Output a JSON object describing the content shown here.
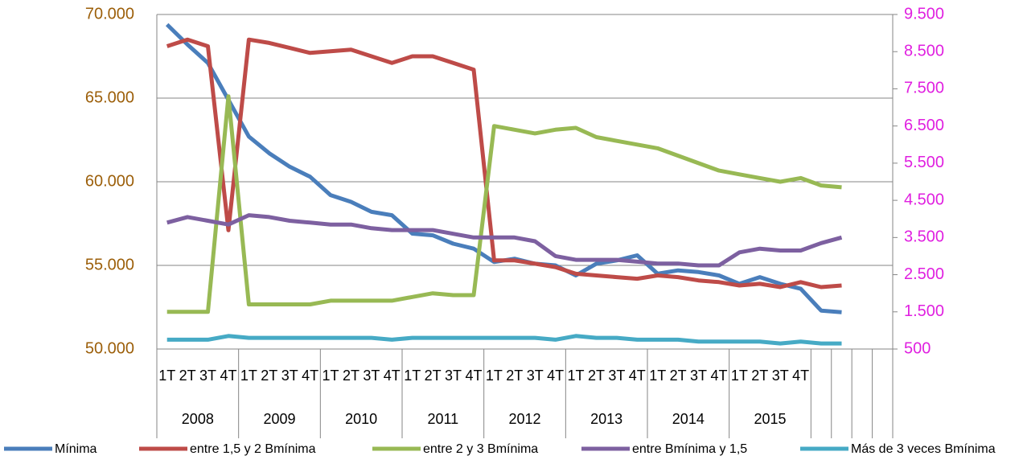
{
  "chart_data": {
    "type": "line",
    "categories": [
      "1T",
      "2T",
      "3T",
      "4T",
      "1T",
      "2T",
      "3T",
      "4T",
      "1T",
      "2T",
      "3T",
      "4T",
      "1T",
      "2T",
      "3T",
      "4T",
      "1T",
      "2T",
      "3T",
      "4T",
      "1T",
      "2T",
      "3T",
      "4T",
      "1T",
      "2T",
      "3T",
      "4T",
      "1T",
      "2T",
      "3T",
      "4T",
      null,
      null,
      null,
      null
    ],
    "groups": [
      "2008",
      "2009",
      "2010",
      "2011",
      "2012",
      "2013",
      "2014",
      "2015"
    ],
    "series": [
      {
        "name": "Mínima",
        "color": "#4a7ebb",
        "values": [
          69400,
          68200,
          67100,
          64900,
          62700,
          61700,
          60900,
          60300,
          59200,
          58800,
          58200,
          58000,
          56900,
          56800,
          56300,
          56000,
          55200,
          55400,
          55100,
          55000,
          54400,
          55100,
          55300,
          55600,
          54500,
          54700,
          54600,
          54400,
          53900,
          54300,
          53900,
          53600,
          52300,
          52200,
          null,
          null
        ]
      },
      {
        "name": "entre 1,5 y 2 Bmínima",
        "color": "#be4b48",
        "values": [
          68100,
          68500,
          68100,
          57100,
          68500,
          68300,
          68000,
          67700,
          67800,
          67900,
          67500,
          67100,
          67500,
          67500,
          67100,
          66700,
          55300,
          55300,
          55100,
          54900,
          54500,
          54400,
          54300,
          54200,
          54400,
          54300,
          54100,
          54000,
          53800,
          53900,
          53700,
          54000,
          53700,
          53800,
          null,
          null
        ]
      },
      {
        "name": "entre 2 y 3 Bmínima",
        "color": "#98b954",
        "axis": "y2",
        "values": [
          1500,
          1500,
          1500,
          7300,
          1700,
          1700,
          1700,
          1700,
          1800,
          1800,
          1800,
          1800,
          1900,
          2000,
          1950,
          1950,
          6500,
          6400,
          6300,
          6400,
          6450,
          6200,
          6100,
          6000,
          5900,
          5700,
          5500,
          5300,
          5200,
          5100,
          5000,
          5100,
          4900,
          4850,
          null,
          null
        ]
      },
      {
        "name": "entre Bmínima y 1,5",
        "color": "#7d60a0",
        "axis": "y2",
        "values": [
          3900,
          4050,
          3950,
          3850,
          4100,
          4050,
          3950,
          3900,
          3850,
          3850,
          3750,
          3700,
          3700,
          3700,
          3600,
          3500,
          3500,
          3500,
          3400,
          3000,
          2900,
          2900,
          2900,
          2850,
          2800,
          2800,
          2750,
          2750,
          3100,
          3200,
          3150,
          3150,
          3350,
          3500,
          null,
          null
        ]
      },
      {
        "name": "Más de 3 veces Bmínima",
        "color": "#46aac5",
        "axis": "y2",
        "values": [
          750,
          750,
          750,
          850,
          800,
          800,
          800,
          800,
          800,
          800,
          800,
          750,
          800,
          800,
          800,
          800,
          800,
          800,
          800,
          750,
          850,
          800,
          800,
          750,
          750,
          750,
          700,
          700,
          700,
          700,
          650,
          700,
          650,
          650,
          null,
          null
        ]
      }
    ],
    "ylim": [
      50000,
      70000
    ],
    "yticks": [
      {
        "value": 50000,
        "label": "50.000"
      },
      {
        "value": 55000,
        "label": "55.000"
      },
      {
        "value": 60000,
        "label": "60.000"
      },
      {
        "value": 65000,
        "label": "65.000"
      },
      {
        "value": 70000,
        "label": "70.000"
      }
    ],
    "y2lim": [
      500,
      9500
    ],
    "y2ticks": [
      500,
      {
        "value": 1500,
        "label": "1.500"
      },
      {
        "value": 2500,
        "label": "2.500"
      },
      {
        "value": 3500,
        "label": "3.500"
      },
      {
        "value": 4500,
        "label": "4.500"
      },
      {
        "value": 5500,
        "label": "5.500"
      },
      {
        "value": 6500,
        "label": "6.500"
      },
      {
        "value": 7500,
        "label": "7.500"
      },
      {
        "value": 8500,
        "label": "8.500"
      },
      {
        "value": 9500,
        "label": "9.500"
      }
    ],
    "ytick_color": "#9c5f0a",
    "y2tick_color": "#e020e0",
    "grid": true,
    "legend": "bottom"
  }
}
